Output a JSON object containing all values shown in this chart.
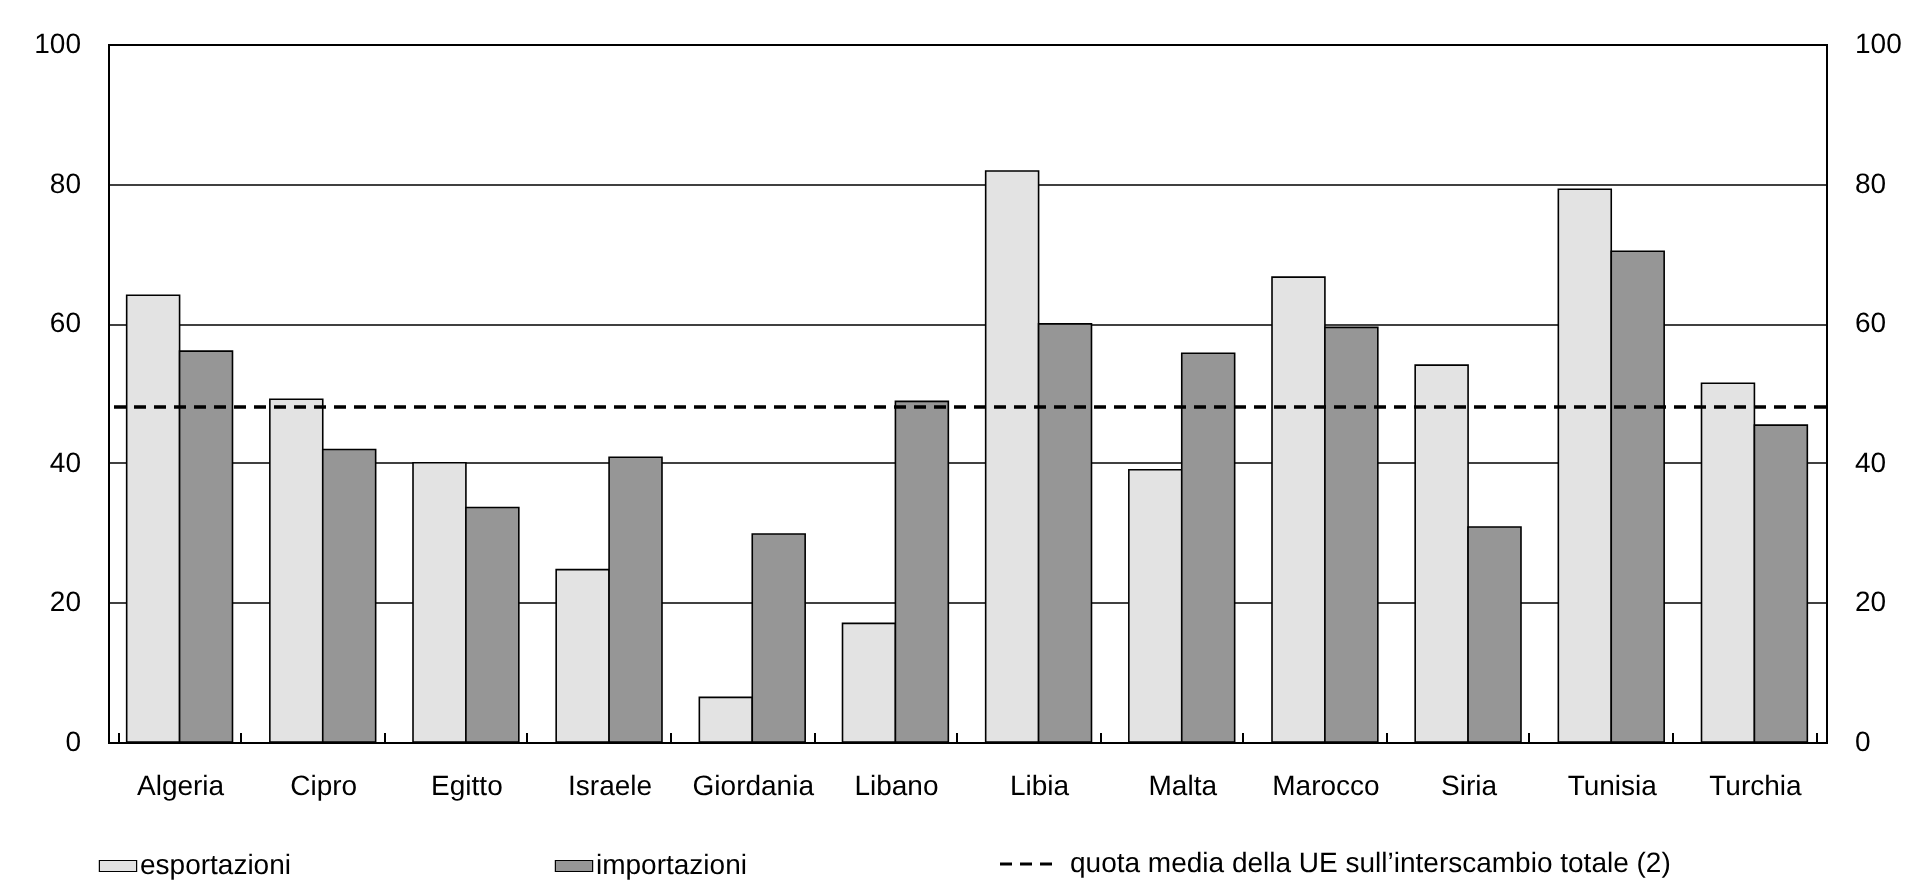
{
  "chart_data": {
    "type": "bar",
    "categories": [
      "Algeria",
      "Cipro",
      "Egitto",
      "Israele",
      "Giordania",
      "Libano",
      "Libia",
      "Malta",
      "Marocco",
      "Siria",
      "Tunisia",
      "Turchia"
    ],
    "series": [
      {
        "name": "esportazioni",
        "color": "#e3e3e3",
        "values": [
          64,
          49.1,
          40,
          24.7,
          6.4,
          17,
          81.8,
          39,
          66.6,
          54,
          79.2,
          51.4
        ]
      },
      {
        "name": "importazioni",
        "color": "#969696",
        "values": [
          56,
          41.9,
          33.6,
          40.8,
          29.8,
          48.8,
          59.9,
          55.7,
          59.4,
          30.8,
          70.3,
          45.4
        ]
      }
    ],
    "ylim": [
      0,
      100
    ],
    "yticks": [
      0,
      20,
      40,
      60,
      80,
      100
    ],
    "y2lim": [
      0,
      100
    ],
    "y2ticks": [
      0,
      20,
      40,
      60,
      80,
      100
    ],
    "ref_lines": [
      {
        "axis": "y",
        "value": 48,
        "label": "quota media della UE sull’interscambio totale (2)",
        "line_style": "dashed",
        "color": "#000000"
      }
    ],
    "grid": "y",
    "legend": "bottom"
  }
}
